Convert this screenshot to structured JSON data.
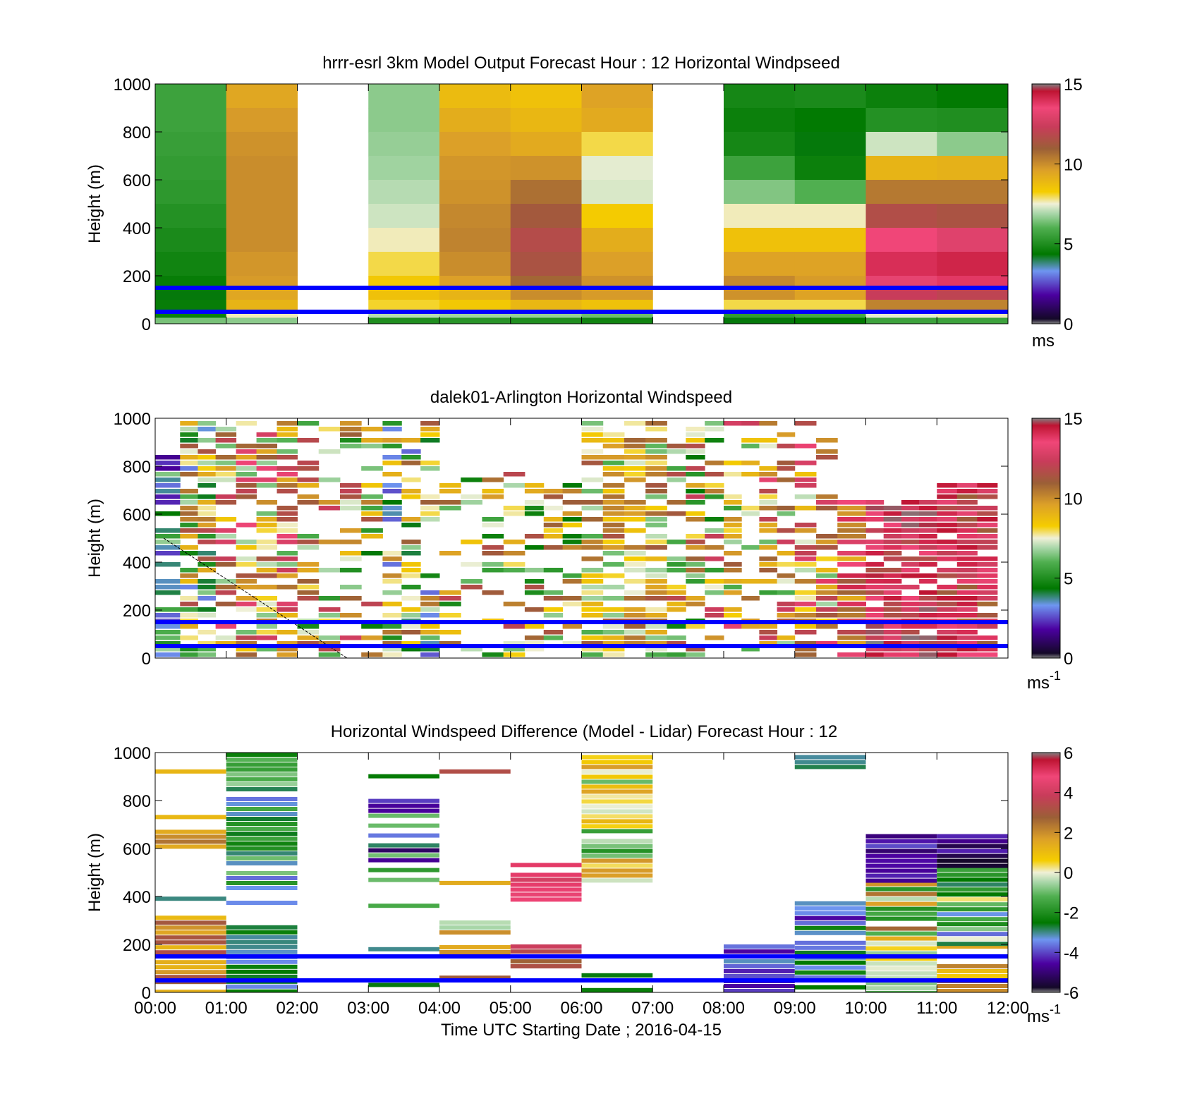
{
  "figure": {
    "xlabel": "Time UTC  Starting Date ; 2016-04-15",
    "x_ticks": [
      "00:00",
      "01:00",
      "02:00",
      "03:00",
      "04:00",
      "05:00",
      "06:00",
      "07:00",
      "08:00",
      "09:00",
      "10:00",
      "11:00",
      "12:00"
    ],
    "reference_lines_m": [
      150,
      50
    ],
    "reference_line_color": "#0000ff"
  },
  "chart_data": [
    {
      "type": "heatmap",
      "title": "hrrr-esrl 3km Model Output   Forecast Hour : 12 Horizontal Windpseed",
      "ylabel": "Height (m)",
      "xlim": [
        0,
        12
      ],
      "ylim": [
        0,
        1000
      ],
      "y_ticks": [
        0,
        200,
        400,
        600,
        800,
        1000
      ],
      "colorbar": {
        "range": [
          0,
          15
        ],
        "ticks": [
          0,
          5,
          10,
          15
        ],
        "unit": "ms"
      },
      "x_bins_hours": [
        0,
        1,
        2,
        3,
        4,
        5,
        6,
        7,
        8,
        9,
        10,
        11
      ],
      "row_heights_m": [
        1000,
        900,
        800,
        700,
        600,
        500,
        400,
        300,
        200,
        150,
        100,
        50,
        25
      ],
      "columns": [
        [
          5.6,
          5.6,
          5.5,
          5.4,
          5.3,
          5.1,
          4.9,
          4.7,
          4.5,
          4.3,
          4.5,
          4.6,
          6.4
        ],
        [
          9.4,
          9.7,
          9.9,
          10.0,
          10.0,
          10.0,
          10.0,
          9.8,
          9.7,
          9.4,
          9.0,
          7.6,
          6.6
        ],
        [
          null,
          null,
          null,
          null,
          null,
          null,
          null,
          null,
          null,
          null,
          null,
          null,
          null
        ],
        [
          6.6,
          6.6,
          6.7,
          6.8,
          7.0,
          7.2,
          7.6,
          8.0,
          8.4,
          8.6,
          8.1,
          7.0,
          5.0
        ],
        [
          8.8,
          9.2,
          9.6,
          9.8,
          9.9,
          10.1,
          10.2,
          10.0,
          9.6,
          9.0,
          8.4,
          6.8,
          5.2
        ],
        [
          8.6,
          8.9,
          9.3,
          9.9,
          10.6,
          11.2,
          11.7,
          11.4,
          10.8,
          10.0,
          8.9,
          6.7,
          5.0
        ],
        [
          9.5,
          9.3,
          8.0,
          7.4,
          7.3,
          8.3,
          9.2,
          9.6,
          9.9,
          9.7,
          8.6,
          6.3,
          4.7
        ],
        [
          null,
          null,
          null,
          null,
          null,
          null,
          null,
          null,
          null,
          null,
          null,
          null,
          null
        ],
        [
          4.8,
          4.6,
          4.8,
          5.6,
          6.5,
          7.6,
          8.6,
          9.5,
          10.1,
          9.9,
          8.0,
          5.4,
          4.3
        ],
        [
          4.9,
          4.4,
          4.3,
          4.6,
          6.0,
          7.6,
          8.6,
          9.5,
          9.7,
          9.5,
          8.0,
          5.8,
          4.4
        ],
        [
          4.6,
          5.1,
          7.2,
          9.0,
          10.4,
          11.6,
          13.5,
          14.0,
          13.2,
          12.3,
          10.2,
          7.4,
          5.6
        ],
        [
          4.4,
          5.0,
          6.6,
          9.1,
          10.4,
          11.4,
          13.0,
          14.2,
          13.8,
          12.0,
          10.2,
          7.6,
          5.6
        ]
      ]
    },
    {
      "type": "heatmap",
      "title": "dalek01-Arlington  Horizontal Windspeed",
      "ylabel": "Height (m)",
      "xlim": [
        0,
        12
      ],
      "ylim": [
        0,
        1000
      ],
      "y_ticks": [
        0,
        200,
        400,
        600,
        800,
        1000
      ],
      "colorbar": {
        "range": [
          0,
          15
        ],
        "ticks": [
          0,
          5,
          10,
          15
        ],
        "unit": "ms",
        "unit_exp": "-1"
      },
      "segments": [
        {
          "x0": 0.0,
          "x1": 0.35,
          "top": 850,
          "base": 4.2,
          "spread": 2.6,
          "density": 0.8
        },
        {
          "x0": 0.35,
          "x1": 0.85,
          "top": 1000,
          "base": 7.5,
          "spread": 4.5,
          "density": 0.75
        },
        {
          "x0": 0.85,
          "x1": 2.0,
          "top": 1000,
          "base": 9.8,
          "spread": 3.8,
          "density": 0.7
        },
        {
          "x0": 2.0,
          "x1": 3.2,
          "top": 1000,
          "base": 8.5,
          "spread": 4.2,
          "density": 0.45
        },
        {
          "x0": 3.2,
          "x1": 4.0,
          "top": 1000,
          "base": 7.0,
          "spread": 4.5,
          "density": 0.55
        },
        {
          "x0": 4.0,
          "x1": 5.2,
          "top": 780,
          "base": 8.4,
          "spread": 3.8,
          "density": 0.4
        },
        {
          "x0": 5.2,
          "x1": 6.0,
          "top": 740,
          "base": 8.0,
          "spread": 3.8,
          "density": 0.45
        },
        {
          "x0": 6.0,
          "x1": 7.2,
          "top": 1000,
          "base": 8.6,
          "spread": 2.8,
          "density": 0.75
        },
        {
          "x0": 7.2,
          "x1": 8.0,
          "top": 1000,
          "base": 8.5,
          "spread": 4.2,
          "density": 0.55
        },
        {
          "x0": 8.0,
          "x1": 9.0,
          "top": 1000,
          "base": 9.3,
          "spread": 4.0,
          "density": 0.5
        },
        {
          "x0": 9.0,
          "x1": 9.6,
          "top": 1000,
          "base": 10.0,
          "spread": 3.8,
          "density": 0.55
        },
        {
          "x0": 9.6,
          "x1": 10.0,
          "top": 680,
          "base": 11.8,
          "spread": 2.6,
          "density": 0.85
        },
        {
          "x0": 10.0,
          "x1": 11.0,
          "top": 680,
          "base": 13.2,
          "spread": 1.8,
          "density": 0.92
        },
        {
          "x0": 11.0,
          "x1": 11.85,
          "top": 730,
          "base": 12.6,
          "spread": 2.0,
          "density": 0.9
        }
      ]
    },
    {
      "type": "heatmap",
      "title": "Horizontal Windspeed Difference (Model - Lidar) Forecast Hour : 12",
      "ylabel": "Height (m)",
      "xlim": [
        0,
        12
      ],
      "ylim": [
        0,
        1000
      ],
      "y_ticks": [
        0,
        200,
        400,
        600,
        800,
        1000
      ],
      "colorbar": {
        "range": [
          -6,
          6
        ],
        "ticks": [
          -6,
          -4,
          -2,
          0,
          2,
          4,
          6
        ],
        "unit": "ms",
        "unit_exp": "-1"
      },
      "blocks": [
        {
          "x0": 0,
          "x1": 1,
          "y0": 0,
          "y1": 320,
          "base": 2.2,
          "spread": 1.2,
          "density": 0.95
        },
        {
          "x0": 0,
          "x1": 1,
          "y0": 380,
          "y1": 420,
          "base": -3.0,
          "spread": 0.3,
          "density": 0.5
        },
        {
          "x0": 0,
          "x1": 1,
          "y0": 540,
          "y1": 740,
          "base": 2.0,
          "spread": 1.2,
          "density": 0.5
        },
        {
          "x0": 0,
          "x1": 1,
          "y0": 910,
          "y1": 930,
          "base": 1.2,
          "spread": 0.1,
          "density": 1.0
        },
        {
          "x0": 1,
          "x1": 2,
          "y0": 0,
          "y1": 280,
          "base": -2.9,
          "spread": 0.6,
          "density": 0.95
        },
        {
          "x0": 1,
          "x1": 2,
          "y0": 380,
          "y1": 1000,
          "base": -2.2,
          "spread": 1.6,
          "density": 0.8
        },
        {
          "x0": 3,
          "x1": 4,
          "y0": 20,
          "y1": 40,
          "base": -2.8,
          "spread": 0.3,
          "density": 1.0
        },
        {
          "x0": 3,
          "x1": 4,
          "y0": 170,
          "y1": 230,
          "base": -2.8,
          "spread": 0.4,
          "density": 0.8
        },
        {
          "x0": 3,
          "x1": 4,
          "y0": 340,
          "y1": 370,
          "base": -1.4,
          "spread": 0.3,
          "density": 0.7
        },
        {
          "x0": 3,
          "x1": 4,
          "y0": 470,
          "y1": 910,
          "base": -3.0,
          "spread": 2.2,
          "density": 0.75
        },
        {
          "x0": 4,
          "x1": 5,
          "y0": 40,
          "y1": 70,
          "base": 2.8,
          "spread": 0.6,
          "density": 0.8
        },
        {
          "x0": 4,
          "x1": 5,
          "y0": 160,
          "y1": 300,
          "base": 0.5,
          "spread": 1.5,
          "density": 0.7
        },
        {
          "x0": 4,
          "x1": 5,
          "y0": 445,
          "y1": 465,
          "base": 1.4,
          "spread": 0.1,
          "density": 1.0
        },
        {
          "x0": 4,
          "x1": 5,
          "y0": 910,
          "y1": 930,
          "base": 3.2,
          "spread": 0.1,
          "density": 1.0
        },
        {
          "x0": 5,
          "x1": 6,
          "y0": 110,
          "y1": 200,
          "base": 2.8,
          "spread": 1.2,
          "density": 0.7
        },
        {
          "x0": 5,
          "x1": 6,
          "y0": 390,
          "y1": 540,
          "base": 4.4,
          "spread": 0.8,
          "density": 0.85
        },
        {
          "x0": 6,
          "x1": 7,
          "y0": 10,
          "y1": 80,
          "base": -2.5,
          "spread": 0.5,
          "density": 0.6
        },
        {
          "x0": 6,
          "x1": 7,
          "y0": 460,
          "y1": 990,
          "base": 0.0,
          "spread": 2.0,
          "density": 0.85
        },
        {
          "x0": 8,
          "x1": 9,
          "y0": 0,
          "y1": 200,
          "base": -3.5,
          "spread": 1.2,
          "density": 0.95
        },
        {
          "x0": 9,
          "x1": 10,
          "y0": 0,
          "y1": 380,
          "base": -3.4,
          "spread": 1.2,
          "density": 0.9
        },
        {
          "x0": 9,
          "x1": 10,
          "y0": 930,
          "y1": 990,
          "base": -3.0,
          "spread": 0.3,
          "density": 0.9
        },
        {
          "x0": 10,
          "x1": 11,
          "y0": 0,
          "y1": 170,
          "base": -0.8,
          "spread": 1.4,
          "density": 0.95
        },
        {
          "x0": 10,
          "x1": 11,
          "y0": 170,
          "y1": 460,
          "base": 0.4,
          "spread": 2.6,
          "density": 0.95
        },
        {
          "x0": 10,
          "x1": 11,
          "y0": 460,
          "y1": 660,
          "base": -4.6,
          "spread": 1.0,
          "density": 0.95
        },
        {
          "x0": 11,
          "x1": 12,
          "y0": 0,
          "y1": 200,
          "base": 1.2,
          "spread": 1.6,
          "density": 0.95
        },
        {
          "x0": 11,
          "x1": 12,
          "y0": 200,
          "y1": 520,
          "base": -1.6,
          "spread": 2.2,
          "density": 0.95
        },
        {
          "x0": 11,
          "x1": 12,
          "y0": 520,
          "y1": 660,
          "base": -5.0,
          "spread": 0.8,
          "density": 0.95
        }
      ]
    }
  ]
}
